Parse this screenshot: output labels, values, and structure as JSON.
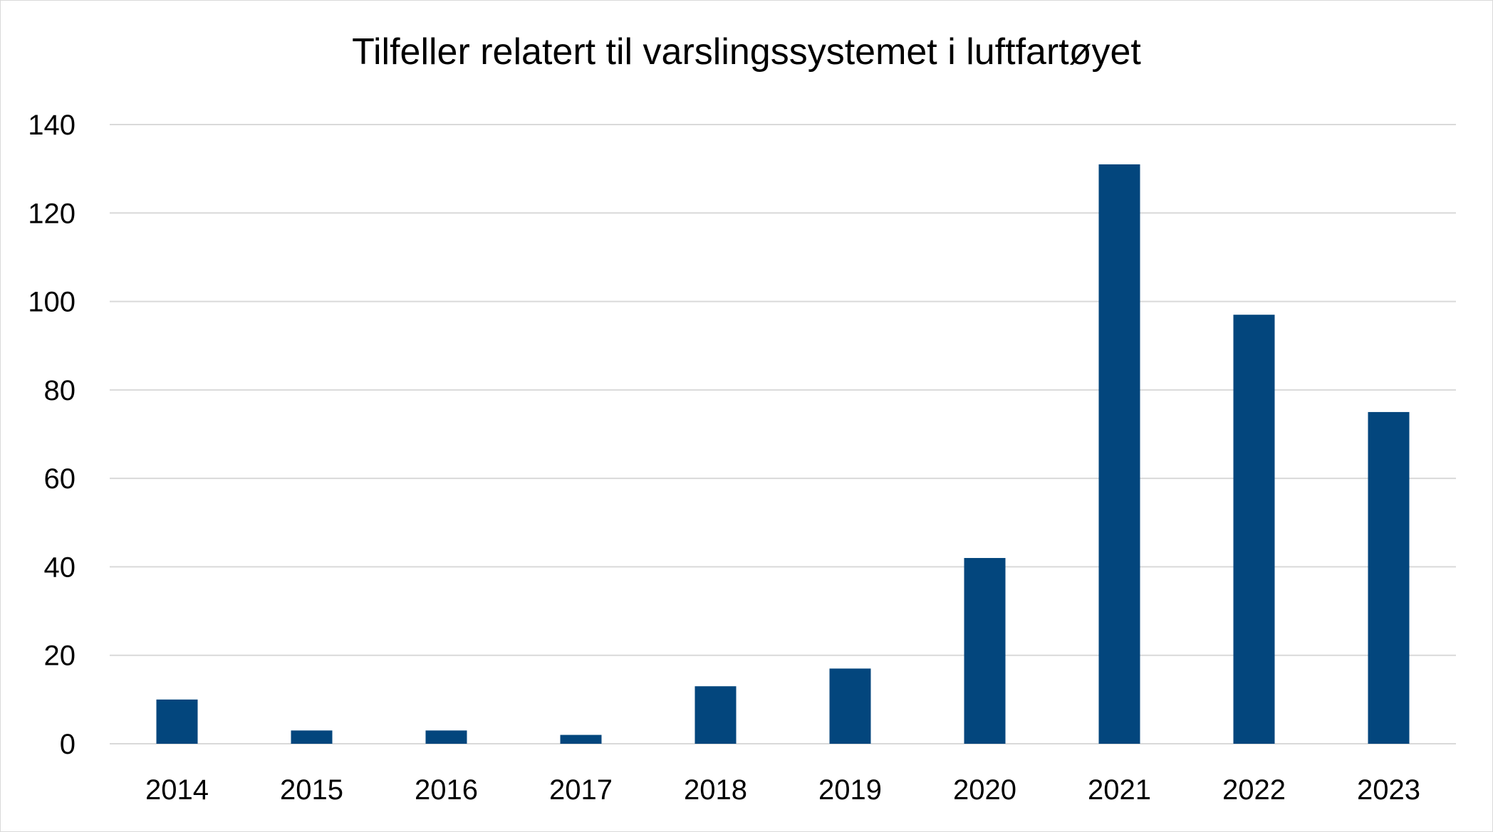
{
  "chart_data": {
    "type": "bar",
    "title": "Tilfeller relatert til varslingssystemet i luftfartøyet",
    "xlabel": "",
    "ylabel": "",
    "categories": [
      "2014",
      "2015",
      "2016",
      "2017",
      "2018",
      "2019",
      "2020",
      "2021",
      "2022",
      "2023"
    ],
    "values": [
      10,
      3,
      3,
      2,
      13,
      17,
      42,
      131,
      97,
      75
    ],
    "ylim": [
      0,
      140
    ],
    "yticks": [
      "0",
      "20",
      "40",
      "60",
      "80",
      "100",
      "120",
      "140"
    ],
    "grid": true,
    "legend": "none",
    "colors": {
      "bar": "#03467D",
      "grid": "#d9d9d9"
    }
  }
}
